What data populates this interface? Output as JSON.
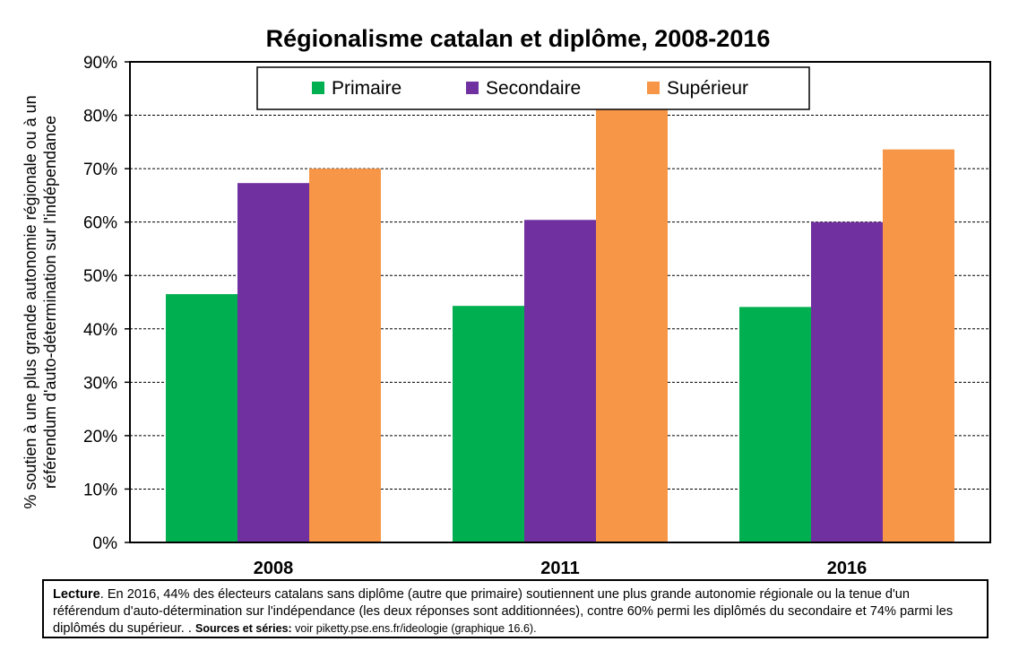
{
  "chart_data": {
    "type": "bar",
    "title": "Régionalisme catalan et diplôme, 2008-2016",
    "ylabel_line1": "% soutien à une plus grande autonomie régionale ou à un",
    "ylabel_line2": "référendum d'auto-détermination sur l'indépendance",
    "categories": [
      "2008",
      "2011",
      "2016"
    ],
    "series": [
      {
        "name": "Primaire",
        "color": "#00b050",
        "values": [
          46.5,
          44.3,
          44.1
        ]
      },
      {
        "name": "Secondaire",
        "color": "#7030a0",
        "values": [
          67.3,
          60.4,
          60.0
        ]
      },
      {
        "name": "Supérieur",
        "color": "#f79646",
        "values": [
          70.0,
          81.0,
          73.6
        ]
      }
    ],
    "ylim": [
      0,
      90
    ],
    "yticks": [
      "0%",
      "10%",
      "20%",
      "30%",
      "40%",
      "50%",
      "60%",
      "70%",
      "80%",
      "90%"
    ],
    "grid": true,
    "legend_position": "top"
  },
  "caption": {
    "lead_bold": "Lecture",
    "lead_text": ". En 2016, 44% des électeurs catalans sans diplôme (autre que primaire) soutiennent une plus grande autonomie régionale ou la tenue d'un référendum d'auto-détermination sur l'indépendance (les deux réponses sont additionnées), contre 60% permi les diplômés du secondaire et 74% parmi les diplômés du supérieur. . ",
    "sources_bold": "Sources et séries:",
    "sources_text": " voir piketty.pse.ens.fr/ideologie (graphique 16.6)."
  }
}
